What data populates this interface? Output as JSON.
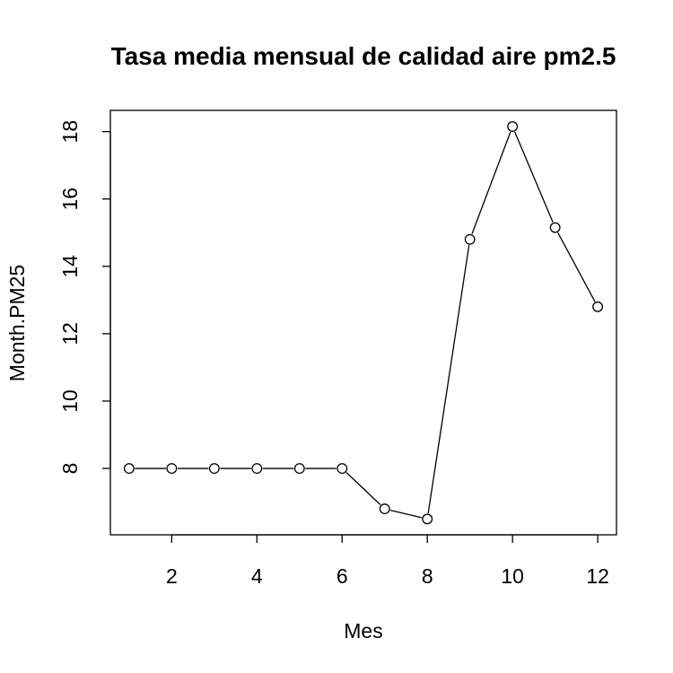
{
  "chart_data": {
    "type": "line",
    "title": "Tasa media mensual de calidad aire pm2.5",
    "xlabel": "Mes",
    "ylabel": "Month.PM25",
    "x": [
      1,
      2,
      3,
      4,
      5,
      6,
      7,
      8,
      9,
      10,
      11,
      12
    ],
    "series": [
      {
        "values": [
          8.0,
          8.0,
          8.0,
          8.0,
          8.0,
          8.0,
          6.8,
          6.5,
          14.8,
          18.15,
          15.15,
          12.8
        ]
      }
    ],
    "xlim": [
      0.56,
      12.44
    ],
    "ylim": [
      6.03,
      18.63
    ],
    "xticks": [
      2,
      4,
      6,
      8,
      10,
      12
    ],
    "yticks": [
      8,
      10,
      12,
      14,
      16,
      18
    ],
    "grid": false,
    "markers": "open-circle",
    "colors": {
      "line": "#000000",
      "axis": "#000000",
      "background": "#ffffff"
    }
  }
}
